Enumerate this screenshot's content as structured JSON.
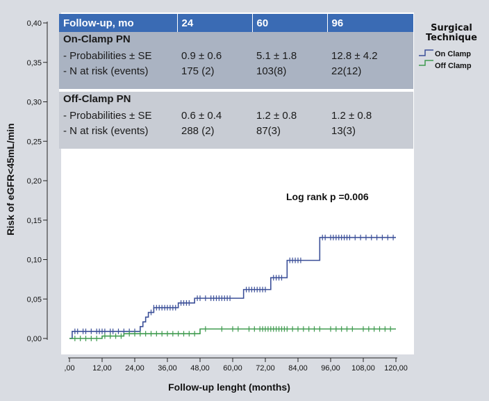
{
  "table": {
    "header": [
      "Follow-up, mo",
      "24",
      "60",
      "96"
    ],
    "groups": [
      {
        "title": "On-Clamp PN",
        "row_labels": [
          "- Probabilities ± SE",
          "- N at risk (events)"
        ],
        "prob": [
          "0.9 ± 0.6",
          "5.1 ± 1.8",
          "12.8 ± 4.2"
        ],
        "atrisk": [
          "175 (2)",
          "103(8)",
          "22(12)"
        ]
      },
      {
        "title": "Off-Clamp PN",
        "row_labels": [
          "- Probabilities ± SE",
          "- N at risk (events)"
        ],
        "prob": [
          "0.6 ± 0.4",
          "1.2 ± 0.8",
          "1.2 ± 0.8"
        ],
        "atrisk": [
          "288 (2)",
          "87(3)",
          "13(3)"
        ]
      }
    ]
  },
  "chart_data": {
    "type": "line",
    "subtype": "kaplan-meier-step",
    "xlabel": "Follow-up lenght (months)",
    "ylabel": "Risk of eGFR<45mL/min",
    "xlim": [
      0,
      120
    ],
    "ylim": [
      0,
      0.4
    ],
    "xticks": [
      ",00",
      "12,00",
      "24,00",
      "36,00",
      "48,00",
      "60,00",
      "72,00",
      "84,00",
      "96,00",
      "108,00",
      "120,00"
    ],
    "xtick_values": [
      0,
      12,
      24,
      36,
      48,
      60,
      72,
      84,
      96,
      108,
      120
    ],
    "yticks": [
      "0,00",
      "0,05",
      "0,10",
      "0,15",
      "0,20",
      "0,25",
      "0,30",
      "0,35",
      "0,40"
    ],
    "ytick_values": [
      0,
      0.05,
      0.1,
      0.15,
      0.2,
      0.25,
      0.3,
      0.35,
      0.4
    ],
    "annotation": "Log rank p =0.006",
    "legend": {
      "title": "Surgical Technique",
      "position": "right"
    },
    "series": [
      {
        "name": "On Clamp",
        "color": "#3b4f98",
        "steps": [
          [
            0,
            0
          ],
          [
            1,
            0.009
          ],
          [
            24,
            0.009
          ],
          [
            26,
            0.015
          ],
          [
            27,
            0.021
          ],
          [
            28,
            0.027
          ],
          [
            29,
            0.033
          ],
          [
            31,
            0.039
          ],
          [
            40,
            0.045
          ],
          [
            46,
            0.051
          ],
          [
            64,
            0.062
          ],
          [
            74,
            0.077
          ],
          [
            80,
            0.099
          ],
          [
            92,
            0.128
          ],
          [
            120,
            0.128
          ]
        ],
        "censored": [
          2,
          3,
          5,
          6,
          8,
          10,
          11,
          12,
          13,
          15,
          16,
          18,
          20,
          22,
          24,
          30,
          31,
          32,
          33,
          34,
          35,
          36,
          37,
          38,
          39,
          41,
          42,
          43,
          44,
          47,
          48,
          50,
          52,
          53,
          54,
          55,
          56,
          57,
          58,
          59,
          65,
          66,
          67,
          68,
          69,
          70,
          71,
          72,
          75,
          76,
          77,
          78,
          81,
          82,
          83,
          84,
          85,
          93,
          94,
          96,
          97,
          98,
          99,
          100,
          101,
          102,
          103,
          105,
          107,
          109,
          111,
          113,
          115,
          117,
          119
        ]
      },
      {
        "name": "Off Clamp",
        "color": "#3e9a4e",
        "steps": [
          [
            0,
            0
          ],
          [
            12,
            0.003
          ],
          [
            20,
            0.006
          ],
          [
            48,
            0.012
          ],
          [
            120,
            0.012
          ]
        ],
        "censored": [
          2,
          4,
          6,
          8,
          10,
          13,
          15,
          17,
          19,
          22,
          24,
          26,
          28,
          30,
          32,
          34,
          36,
          38,
          40,
          42,
          44,
          46,
          50,
          56,
          60,
          62,
          66,
          68,
          70,
          71,
          72,
          73,
          74,
          75,
          76,
          77,
          78,
          79,
          80,
          82,
          84,
          86,
          88,
          90,
          92,
          96,
          98,
          100,
          102,
          104,
          108,
          110,
          112,
          114,
          116,
          118
        ]
      }
    ]
  }
}
